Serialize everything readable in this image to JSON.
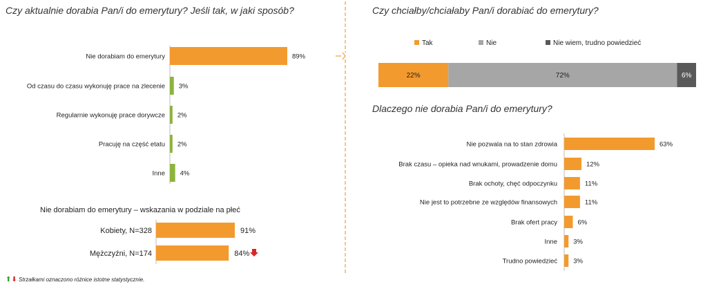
{
  "colors": {
    "orange": "#F39A2E",
    "green": "#8DB33C",
    "gray": "#A6A6A6",
    "darkgray": "#595959",
    "red": "#D92525",
    "divider": "#F0A34A"
  },
  "left_title": "Czy aktualnie dorabia Pan/i do emerytury? Jeśli tak, w jaki sposób?",
  "gender_title": "Nie dorabiam do emerytury – wskazania w podziale na płeć",
  "right_title_top": "Czy chciałby/chciałaby Pan/i dorabiać do emerytury?",
  "right_title_bottom": "Dlaczego nie dorabia Pan/i do emerytury?",
  "footnote": "Strzałkami oznaczono różnice istotne statystycznie.",
  "chart_data": [
    {
      "type": "bar",
      "orientation": "horizontal",
      "title": "Czy aktualnie dorabia Pan/i do emerytury? Jeśli tak, w jaki sposób?",
      "categories": [
        "Nie dorabiam do emerytury",
        "Od czasu do czasu wykonuję prace na zlecenie",
        "Regularnie wykonuję prace dorywcze",
        "Pracuję na część etatu",
        "Inne"
      ],
      "values": [
        89,
        3,
        2,
        2,
        4
      ],
      "labels": [
        "89%",
        "3%",
        "2%",
        "2%",
        "4%"
      ],
      "unit": "%"
    },
    {
      "type": "bar",
      "orientation": "horizontal",
      "title": "Nie dorabiam do emerytury – wskazania w podziale na płeć",
      "categories": [
        "Kobiety, N=328",
        "Mężczyźni, N=174"
      ],
      "values": [
        91,
        84
      ],
      "labels": [
        "91%",
        "84%"
      ],
      "unit": "%"
    },
    {
      "type": "bar",
      "orientation": "horizontal",
      "stacked": true,
      "title": "Czy chciałby/chciałaby Pan/i dorabiać do emerytury?",
      "series": [
        {
          "name": "Tak",
          "values": [
            22
          ],
          "label": "22%"
        },
        {
          "name": "Nie",
          "values": [
            72
          ],
          "label": "72%"
        },
        {
          "name": "Nie wiem, trudno powiedzieć",
          "values": [
            6
          ],
          "label": "6%"
        }
      ],
      "unit": "%"
    },
    {
      "type": "bar",
      "orientation": "horizontal",
      "title": "Dlaczego nie dorabia Pan/i do emerytury?",
      "categories": [
        "Nie pozwala na to stan zdrowia",
        "Brak czasu – opieka nad wnukami, prowadzenie domu",
        "Brak ochoty, chęć odpoczynku",
        "Nie jest to potrzebne ze względów finansowych",
        "Brak ofert pracy",
        "Inne",
        "Trudno powiedzieć"
      ],
      "values": [
        63,
        12,
        11,
        11,
        6,
        3,
        3
      ],
      "labels": [
        "63%",
        "12%",
        "11%",
        "11%",
        "6%",
        "3%",
        "3%"
      ],
      "unit": "%"
    }
  ]
}
